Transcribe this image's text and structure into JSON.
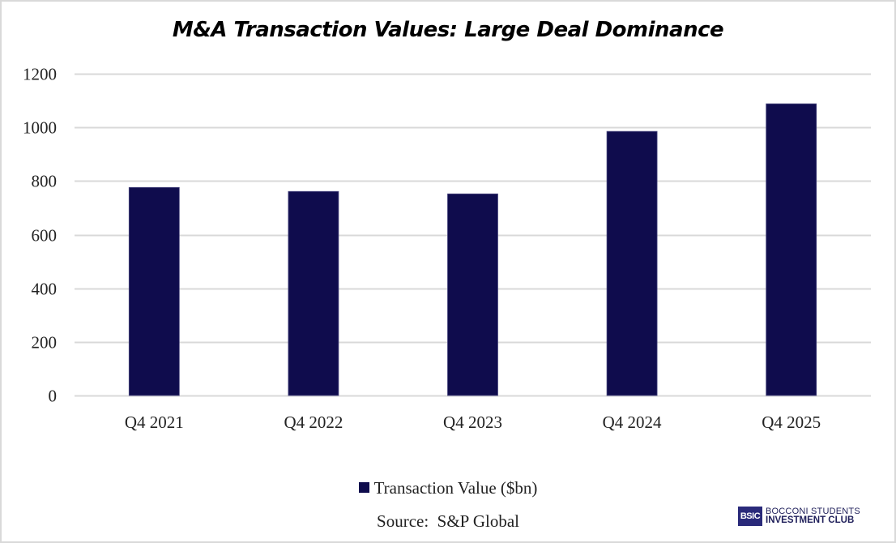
{
  "chart_data": {
    "type": "bar",
    "title": "M&A Transaction Values: Large Deal Dominance",
    "categories": [
      "Q4 2021",
      "Q4 2022",
      "Q4 2023",
      "Q4 2024",
      "Q4 2025"
    ],
    "series": [
      {
        "name": "Transaction Value ($bn)",
        "values": [
          776,
          761,
          752,
          985,
          1088
        ],
        "color": "#0f0c4d"
      }
    ],
    "xlabel": "",
    "ylabel": "",
    "ylim": [
      0,
      1200
    ],
    "yticks": [
      0,
      200,
      400,
      600,
      800,
      1000,
      1200
    ],
    "grid": true,
    "legend_position": "bottom"
  },
  "source": "Source:  S&P Global",
  "logo": {
    "mark": "BSIC",
    "line1": "BOCCONI STUDENTS",
    "line2": "INVESTMENT CLUB"
  }
}
